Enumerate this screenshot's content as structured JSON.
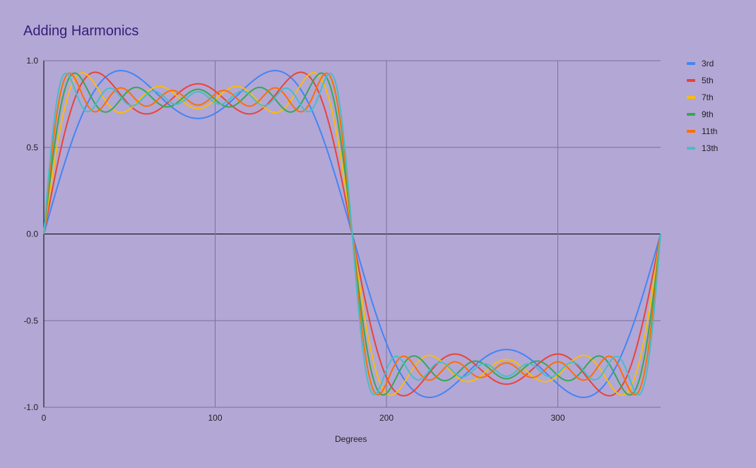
{
  "chart_data": {
    "type": "line",
    "title": "Adding Harmonics",
    "xlabel": "Degrees",
    "ylabel": "",
    "xlim": [
      0,
      360
    ],
    "ylim": [
      -1.0,
      1.0
    ],
    "x_ticks": [
      "0",
      "100",
      "200",
      "300"
    ],
    "y_ticks": [
      "1.0",
      "0.5",
      "0.0",
      "-0.5",
      "-1.0"
    ],
    "grid": true,
    "legend_position": "right",
    "formula": "y = sum over odd k<=N of sin(k*x)/k, x in degrees",
    "series": [
      {
        "name": "3rd",
        "max_harmonic": 3,
        "color": "#4285f4",
        "sample_values": {
          "0": 0,
          "45": 0.943,
          "90": 0.667,
          "135": 0.943,
          "180": 0,
          "225": -0.943,
          "270": -0.667,
          "315": -0.943,
          "360": 0
        }
      },
      {
        "name": "5th",
        "max_harmonic": 5,
        "color": "#ea4335",
        "sample_values": {
          "0": 0,
          "90": 0.867,
          "180": 0,
          "270": -0.867,
          "360": 0
        }
      },
      {
        "name": "7th",
        "max_harmonic": 7,
        "color": "#fbbc04",
        "sample_values": {
          "0": 0,
          "90": 0.724,
          "180": 0,
          "270": -0.724,
          "360": 0
        }
      },
      {
        "name": "9th",
        "max_harmonic": 9,
        "color": "#34a853",
        "sample_values": {
          "0": 0,
          "90": 0.835,
          "180": 0,
          "270": -0.835,
          "360": 0
        }
      },
      {
        "name": "11th",
        "max_harmonic": 11,
        "color": "#ff6d01",
        "sample_values": {
          "0": 0,
          "90": 0.744,
          "180": 0,
          "270": -0.744,
          "360": 0
        }
      },
      {
        "name": "13th",
        "max_harmonic": 13,
        "color": "#46bdc6",
        "sample_values": {
          "0": 0,
          "90": 0.821,
          "180": 0,
          "270": -0.821,
          "360": 0
        }
      }
    ]
  },
  "legend": [
    {
      "label": "3rd",
      "color": "#4285f4"
    },
    {
      "label": "5th",
      "color": "#ea4335"
    },
    {
      "label": "7th",
      "color": "#fbbc04"
    },
    {
      "label": "9th",
      "color": "#34a853"
    },
    {
      "label": "11th",
      "color": "#ff6d01"
    },
    {
      "label": "13th",
      "color": "#46bdc6"
    }
  ]
}
